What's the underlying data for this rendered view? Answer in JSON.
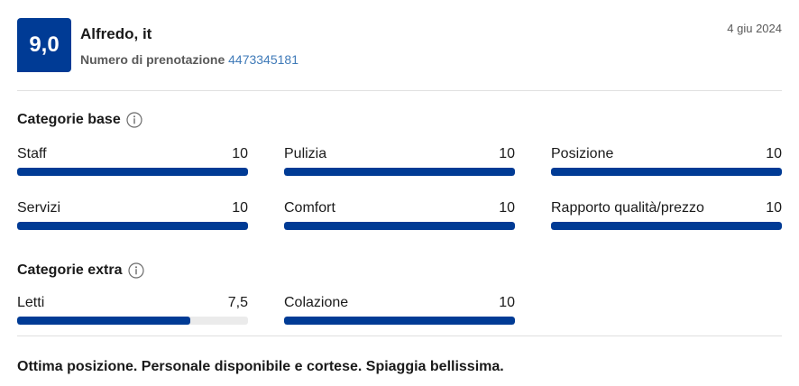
{
  "review": {
    "score": "9,0",
    "reviewer": "Alfredo, it",
    "booking_label": "Numero di prenotazione",
    "booking_number": "4473345181",
    "date": "4 giu 2024",
    "text": "Ottima posizione. Personale disponibile e cortese. Spiaggia bellissima."
  },
  "base_categories": {
    "title": "Categorie base",
    "icon": "info-icon",
    "items": [
      {
        "label": "Staff",
        "value": "10",
        "score": 10
      },
      {
        "label": "Pulizia",
        "value": "10",
        "score": 10
      },
      {
        "label": "Posizione",
        "value": "10",
        "score": 10
      },
      {
        "label": "Servizi",
        "value": "10",
        "score": 10
      },
      {
        "label": "Comfort",
        "value": "10",
        "score": 10
      },
      {
        "label": "Rapporto qualità/prezzo",
        "value": "10",
        "score": 10
      }
    ]
  },
  "extra_categories": {
    "title": "Categorie extra",
    "icon": "info-icon",
    "items": [
      {
        "label": "Letti",
        "value": "7,5",
        "score": 7.5
      },
      {
        "label": "Colazione",
        "value": "10",
        "score": 10
      }
    ]
  },
  "scale_max": 10,
  "colors": {
    "accent": "#003b95",
    "link": "#3f7ab8",
    "track": "#ebebeb"
  }
}
